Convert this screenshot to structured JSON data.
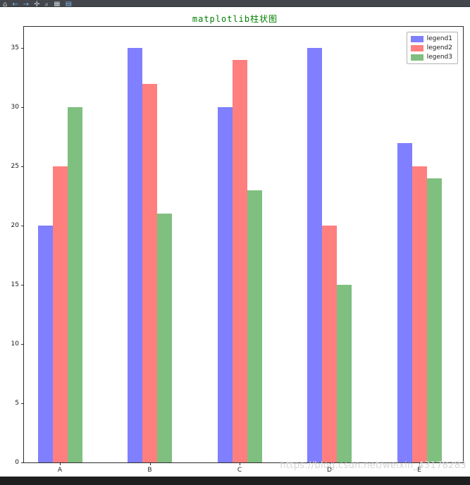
{
  "toolbar": {
    "icons": [
      {
        "name": "home-icon",
        "glyph": "⌂",
        "blue": false
      },
      {
        "name": "back-icon",
        "glyph": "←",
        "blue": true
      },
      {
        "name": "forward-icon",
        "glyph": "→",
        "blue": true
      },
      {
        "name": "pan-icon",
        "glyph": "✛",
        "blue": false
      },
      {
        "name": "zoom-icon",
        "glyph": "⌕",
        "blue": false
      },
      {
        "name": "subplots-icon",
        "glyph": "▦",
        "blue": false
      },
      {
        "name": "save-icon",
        "glyph": "▤",
        "blue": true
      }
    ]
  },
  "figure": {
    "watermark": "https://blog.csdn.net/weixin_43178283"
  },
  "chart_data": {
    "type": "bar",
    "title": "matplotlib柱状图",
    "title_color": "#008000",
    "categories": [
      "A",
      "B",
      "C",
      "D",
      "E"
    ],
    "series": [
      {
        "name": "legend1",
        "color": "#7f7fff",
        "values": [
          20,
          35,
          30,
          35,
          27
        ]
      },
      {
        "name": "legend2",
        "color": "#ff7f7f",
        "values": [
          25,
          32,
          34,
          20,
          25
        ]
      },
      {
        "name": "legend3",
        "color": "#7fbf7f",
        "values": [
          30,
          21,
          23,
          15,
          24
        ]
      }
    ],
    "yticks": [
      0,
      5,
      10,
      15,
      20,
      25,
      30,
      35
    ],
    "ylim": [
      0,
      36.8
    ],
    "xlabel": "",
    "ylabel": "",
    "grid": false,
    "legend_position": "upper right"
  }
}
